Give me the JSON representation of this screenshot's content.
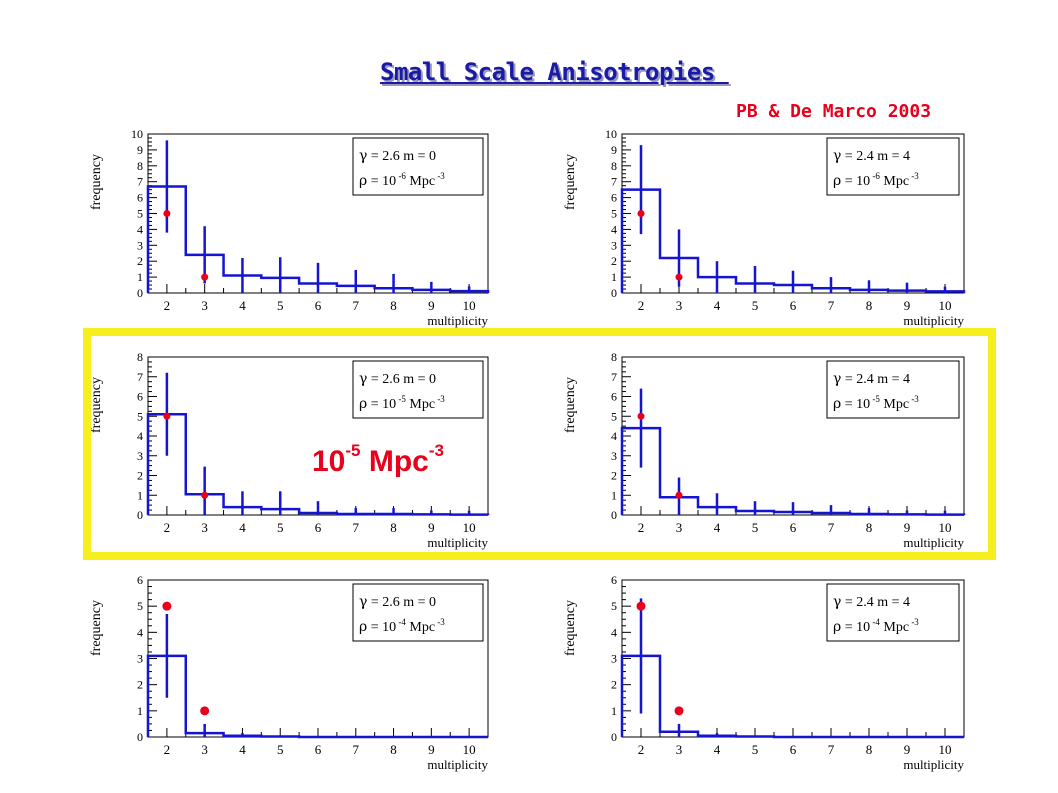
{
  "slide": {
    "title": "Small Scale Anisotropies ",
    "credit": "PB & De Marco 2003",
    "highlight_label": {
      "base": "10",
      "exp": "-5",
      "unit": "Mpc",
      "unit_exp": "-3"
    }
  },
  "colors": {
    "title": "#1a1aa8",
    "credit": "#e8001c",
    "histogram": "#1414d2",
    "points": "#e8001c",
    "highlight_box": "#f7ee1e"
  },
  "chart_data": [
    {
      "type": "bar",
      "param_gamma": "2.6",
      "param_m": "0",
      "rho_exp": "-6",
      "xlabel": "multiplicity",
      "ylabel": "frequency",
      "ylim": [
        0,
        10
      ],
      "yticks": [
        0,
        1,
        2,
        3,
        4,
        5,
        6,
        7,
        8,
        9,
        10
      ],
      "xticks": [
        2,
        3,
        4,
        5,
        6,
        7,
        8,
        9,
        10
      ],
      "hist": [
        6.7,
        2.4,
        1.1,
        0.95,
        0.6,
        0.45,
        0.3,
        0.2,
        0.12
      ],
      "errors": [
        2.9,
        1.8,
        1.1,
        1.3,
        1.3,
        1.0,
        0.9,
        0.5,
        0.3
      ],
      "points": [
        {
          "x": 2,
          "y": 5
        },
        {
          "x": 3,
          "y": 1
        }
      ]
    },
    {
      "type": "bar",
      "param_gamma": "2.4",
      "param_m": "4",
      "rho_exp": "-6",
      "xlabel": "multiplicity",
      "ylabel": "frequency",
      "ylim": [
        0,
        10
      ],
      "yticks": [
        0,
        1,
        2,
        3,
        4,
        5,
        6,
        7,
        8,
        9,
        10
      ],
      "xticks": [
        2,
        3,
        4,
        5,
        6,
        7,
        8,
        9,
        10
      ],
      "hist": [
        6.5,
        2.2,
        1.0,
        0.6,
        0.5,
        0.3,
        0.2,
        0.15,
        0.1
      ],
      "errors": [
        2.8,
        1.8,
        1.0,
        1.1,
        0.9,
        0.7,
        0.6,
        0.5,
        0.3
      ],
      "points": [
        {
          "x": 2,
          "y": 5
        },
        {
          "x": 3,
          "y": 1
        }
      ]
    },
    {
      "type": "bar",
      "param_gamma": "2.6",
      "param_m": "0",
      "rho_exp": "-5",
      "xlabel": "multiplicity",
      "ylabel": "frequency",
      "ylim": [
        0,
        8
      ],
      "yticks": [
        0,
        1,
        2,
        3,
        4,
        5,
        6,
        7,
        8
      ],
      "xticks": [
        2,
        3,
        4,
        5,
        6,
        7,
        8,
        9,
        10
      ],
      "hist": [
        5.1,
        1.05,
        0.4,
        0.3,
        0.1,
        0.05,
        0.05,
        0.03,
        0.02
      ],
      "errors": [
        2.1,
        1.4,
        0.8,
        0.9,
        0.6,
        0.3,
        0.3,
        0.2,
        0.2
      ],
      "points": [
        {
          "x": 2,
          "y": 5
        },
        {
          "x": 3,
          "y": 1
        }
      ]
    },
    {
      "type": "bar",
      "param_gamma": "2.4",
      "param_m": "4",
      "rho_exp": "-5",
      "xlabel": "multiplicity",
      "ylabel": "frequency",
      "ylim": [
        0,
        8
      ],
      "yticks": [
        0,
        1,
        2,
        3,
        4,
        5,
        6,
        7,
        8
      ],
      "xticks": [
        2,
        3,
        4,
        5,
        6,
        7,
        8,
        9,
        10
      ],
      "hist": [
        4.4,
        0.9,
        0.4,
        0.2,
        0.15,
        0.1,
        0.05,
        0.03,
        0.02
      ],
      "errors": [
        2.0,
        1.0,
        0.7,
        0.5,
        0.5,
        0.4,
        0.3,
        0.2,
        0.2
      ],
      "points": [
        {
          "x": 2,
          "y": 5
        },
        {
          "x": 3,
          "y": 1
        }
      ]
    },
    {
      "type": "bar",
      "param_gamma": "2.6",
      "param_m": "0",
      "rho_exp": "-4",
      "xlabel": "multiplicity",
      "ylabel": "frequency",
      "ylim": [
        0,
        6
      ],
      "yticks": [
        0,
        1,
        2,
        3,
        4,
        5,
        6
      ],
      "xticks": [
        2,
        3,
        4,
        5,
        6,
        7,
        8,
        9,
        10
      ],
      "hist": [
        3.1,
        0.15,
        0.05,
        0.02,
        0.0,
        0.0,
        0.0,
        0.0,
        0.0
      ],
      "errors": [
        1.6,
        0.35,
        0.1,
        0.0,
        0.0,
        0.0,
        0.0,
        0.0,
        0.0
      ],
      "points": [
        {
          "x": 2,
          "y": 5
        },
        {
          "x": 3,
          "y": 1
        }
      ]
    },
    {
      "type": "bar",
      "param_gamma": "2.4",
      "param_m": "4",
      "rho_exp": "-4",
      "xlabel": "multiplicity",
      "ylabel": "frequency",
      "ylim": [
        0,
        6
      ],
      "yticks": [
        0,
        1,
        2,
        3,
        4,
        5,
        6
      ],
      "xticks": [
        2,
        3,
        4,
        5,
        6,
        7,
        8,
        9,
        10
      ],
      "hist": [
        3.1,
        0.2,
        0.05,
        0.02,
        0.0,
        0.0,
        0.0,
        0.0,
        0.0
      ],
      "errors": [
        2.2,
        0.3,
        0.1,
        0.0,
        0.0,
        0.0,
        0.0,
        0.0,
        0.0
      ],
      "points": [
        {
          "x": 2,
          "y": 5
        },
        {
          "x": 3,
          "y": 1
        }
      ]
    }
  ]
}
